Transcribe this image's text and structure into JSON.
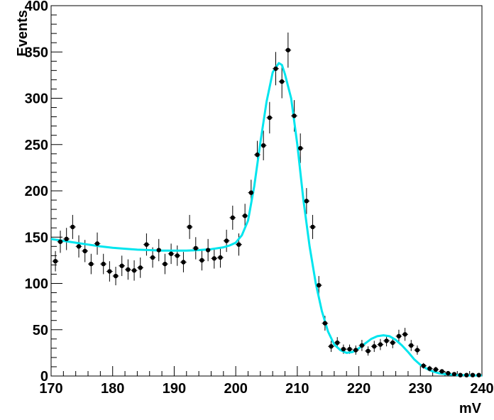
{
  "chart_data": {
    "type": "scatter",
    "title": "",
    "xlabel": "mV",
    "ylabel": "Events",
    "xlim": [
      170,
      240
    ],
    "ylim": [
      0,
      400
    ],
    "x_ticks": [
      170,
      180,
      190,
      200,
      210,
      220,
      230,
      240
    ],
    "y_ticks": [
      0,
      50,
      100,
      150,
      200,
      250,
      300,
      350,
      400
    ],
    "x_tick_labels": [
      "170",
      "180",
      "190",
      "200",
      "210",
      "220",
      "230",
      "240"
    ],
    "y_tick_labels": [
      "0",
      "50",
      "100",
      "150",
      "200",
      "250",
      "300",
      "350",
      "400"
    ],
    "grid": false,
    "legend": "none",
    "series": [
      {
        "kind": "data-points-with-error-bars",
        "color": "#000000",
        "x": [
          170.7,
          171.5,
          172.5,
          173.5,
          174.5,
          175.5,
          176.5,
          177.5,
          178.5,
          179.5,
          180.5,
          181.5,
          182.5,
          183.5,
          184.5,
          185.5,
          186.5,
          187.5,
          188.5,
          189.5,
          190.5,
          191.5,
          192.5,
          193.5,
          194.5,
          195.5,
          196.5,
          197.5,
          198.5,
          199.5,
          200.5,
          201.5,
          202.5,
          203.5,
          204.5,
          205.5,
          206.5,
          207.5,
          208.5,
          209.5,
          210.5,
          211.5,
          212.5,
          213.5,
          214.5,
          215.5,
          216.5,
          217.5,
          218.5,
          219.5,
          220.5,
          221.5,
          222.5,
          223.5,
          224.5,
          225.5,
          226.5,
          227.5,
          228.5,
          229.5,
          230.5,
          231.5,
          232.5,
          233.5,
          234.5,
          235.5,
          236.5,
          237.5,
          238.5,
          239.5
        ],
        "y": [
          124,
          145,
          148,
          161,
          140,
          135,
          121,
          143,
          121,
          113,
          108,
          119,
          115,
          114,
          117,
          142,
          128,
          136,
          121,
          132,
          130,
          123,
          161,
          138,
          125,
          136,
          127,
          128,
          146,
          171,
          142,
          173,
          198,
          239,
          249,
          279,
          332,
          318,
          352,
          281,
          246,
          189,
          161,
          98,
          57,
          32,
          36,
          29,
          29,
          28,
          33,
          27,
          32,
          34,
          38,
          36,
          43,
          45,
          33,
          28,
          11,
          8,
          7,
          5,
          3,
          2,
          1,
          1,
          1,
          1
        ],
        "yerr": [
          11,
          12,
          12,
          13,
          12,
          12,
          11,
          12,
          11,
          11,
          10,
          11,
          11,
          11,
          11,
          12,
          11,
          12,
          11,
          11,
          11,
          11,
          13,
          12,
          11,
          12,
          11,
          11,
          12,
          13,
          12,
          13,
          14,
          15,
          16,
          17,
          18,
          18,
          19,
          17,
          16,
          14,
          13,
          10,
          8,
          6,
          6,
          5,
          5,
          5,
          6,
          5,
          6,
          6,
          6,
          6,
          7,
          7,
          6,
          5,
          3,
          3,
          3,
          2,
          2,
          1,
          1,
          1,
          1,
          1
        ]
      },
      {
        "kind": "fit-curve",
        "color": "#00e5ee",
        "x": [
          170,
          172,
          174,
          176,
          178,
          180,
          182,
          184,
          186,
          188,
          190,
          192,
          194,
          196,
          198,
          199,
          200,
          201,
          202,
          203,
          204,
          205,
          206,
          207,
          207.5,
          208,
          209,
          210,
          211,
          212,
          213,
          214,
          215,
          216,
          217,
          218,
          219,
          220,
          221,
          222,
          223,
          224,
          225,
          226,
          227,
          228,
          229,
          230,
          231,
          232,
          233,
          234,
          235,
          236,
          237,
          238,
          239,
          240
        ],
        "y": [
          148,
          146,
          144,
          142,
          140,
          138.5,
          137.5,
          136.5,
          136,
          135.5,
          135.5,
          135.5,
          136,
          137,
          139,
          141,
          144,
          152,
          168,
          205,
          252,
          296,
          328,
          338,
          336,
          326,
          300,
          250,
          190,
          140,
          100,
          70,
          48,
          34,
          28,
          25,
          26,
          30,
          35,
          40,
          43,
          44,
          43,
          39,
          33,
          26,
          18,
          12,
          8,
          5,
          3,
          2,
          1.5,
          1,
          1,
          0.5,
          0.5,
          0.5
        ]
      }
    ]
  }
}
